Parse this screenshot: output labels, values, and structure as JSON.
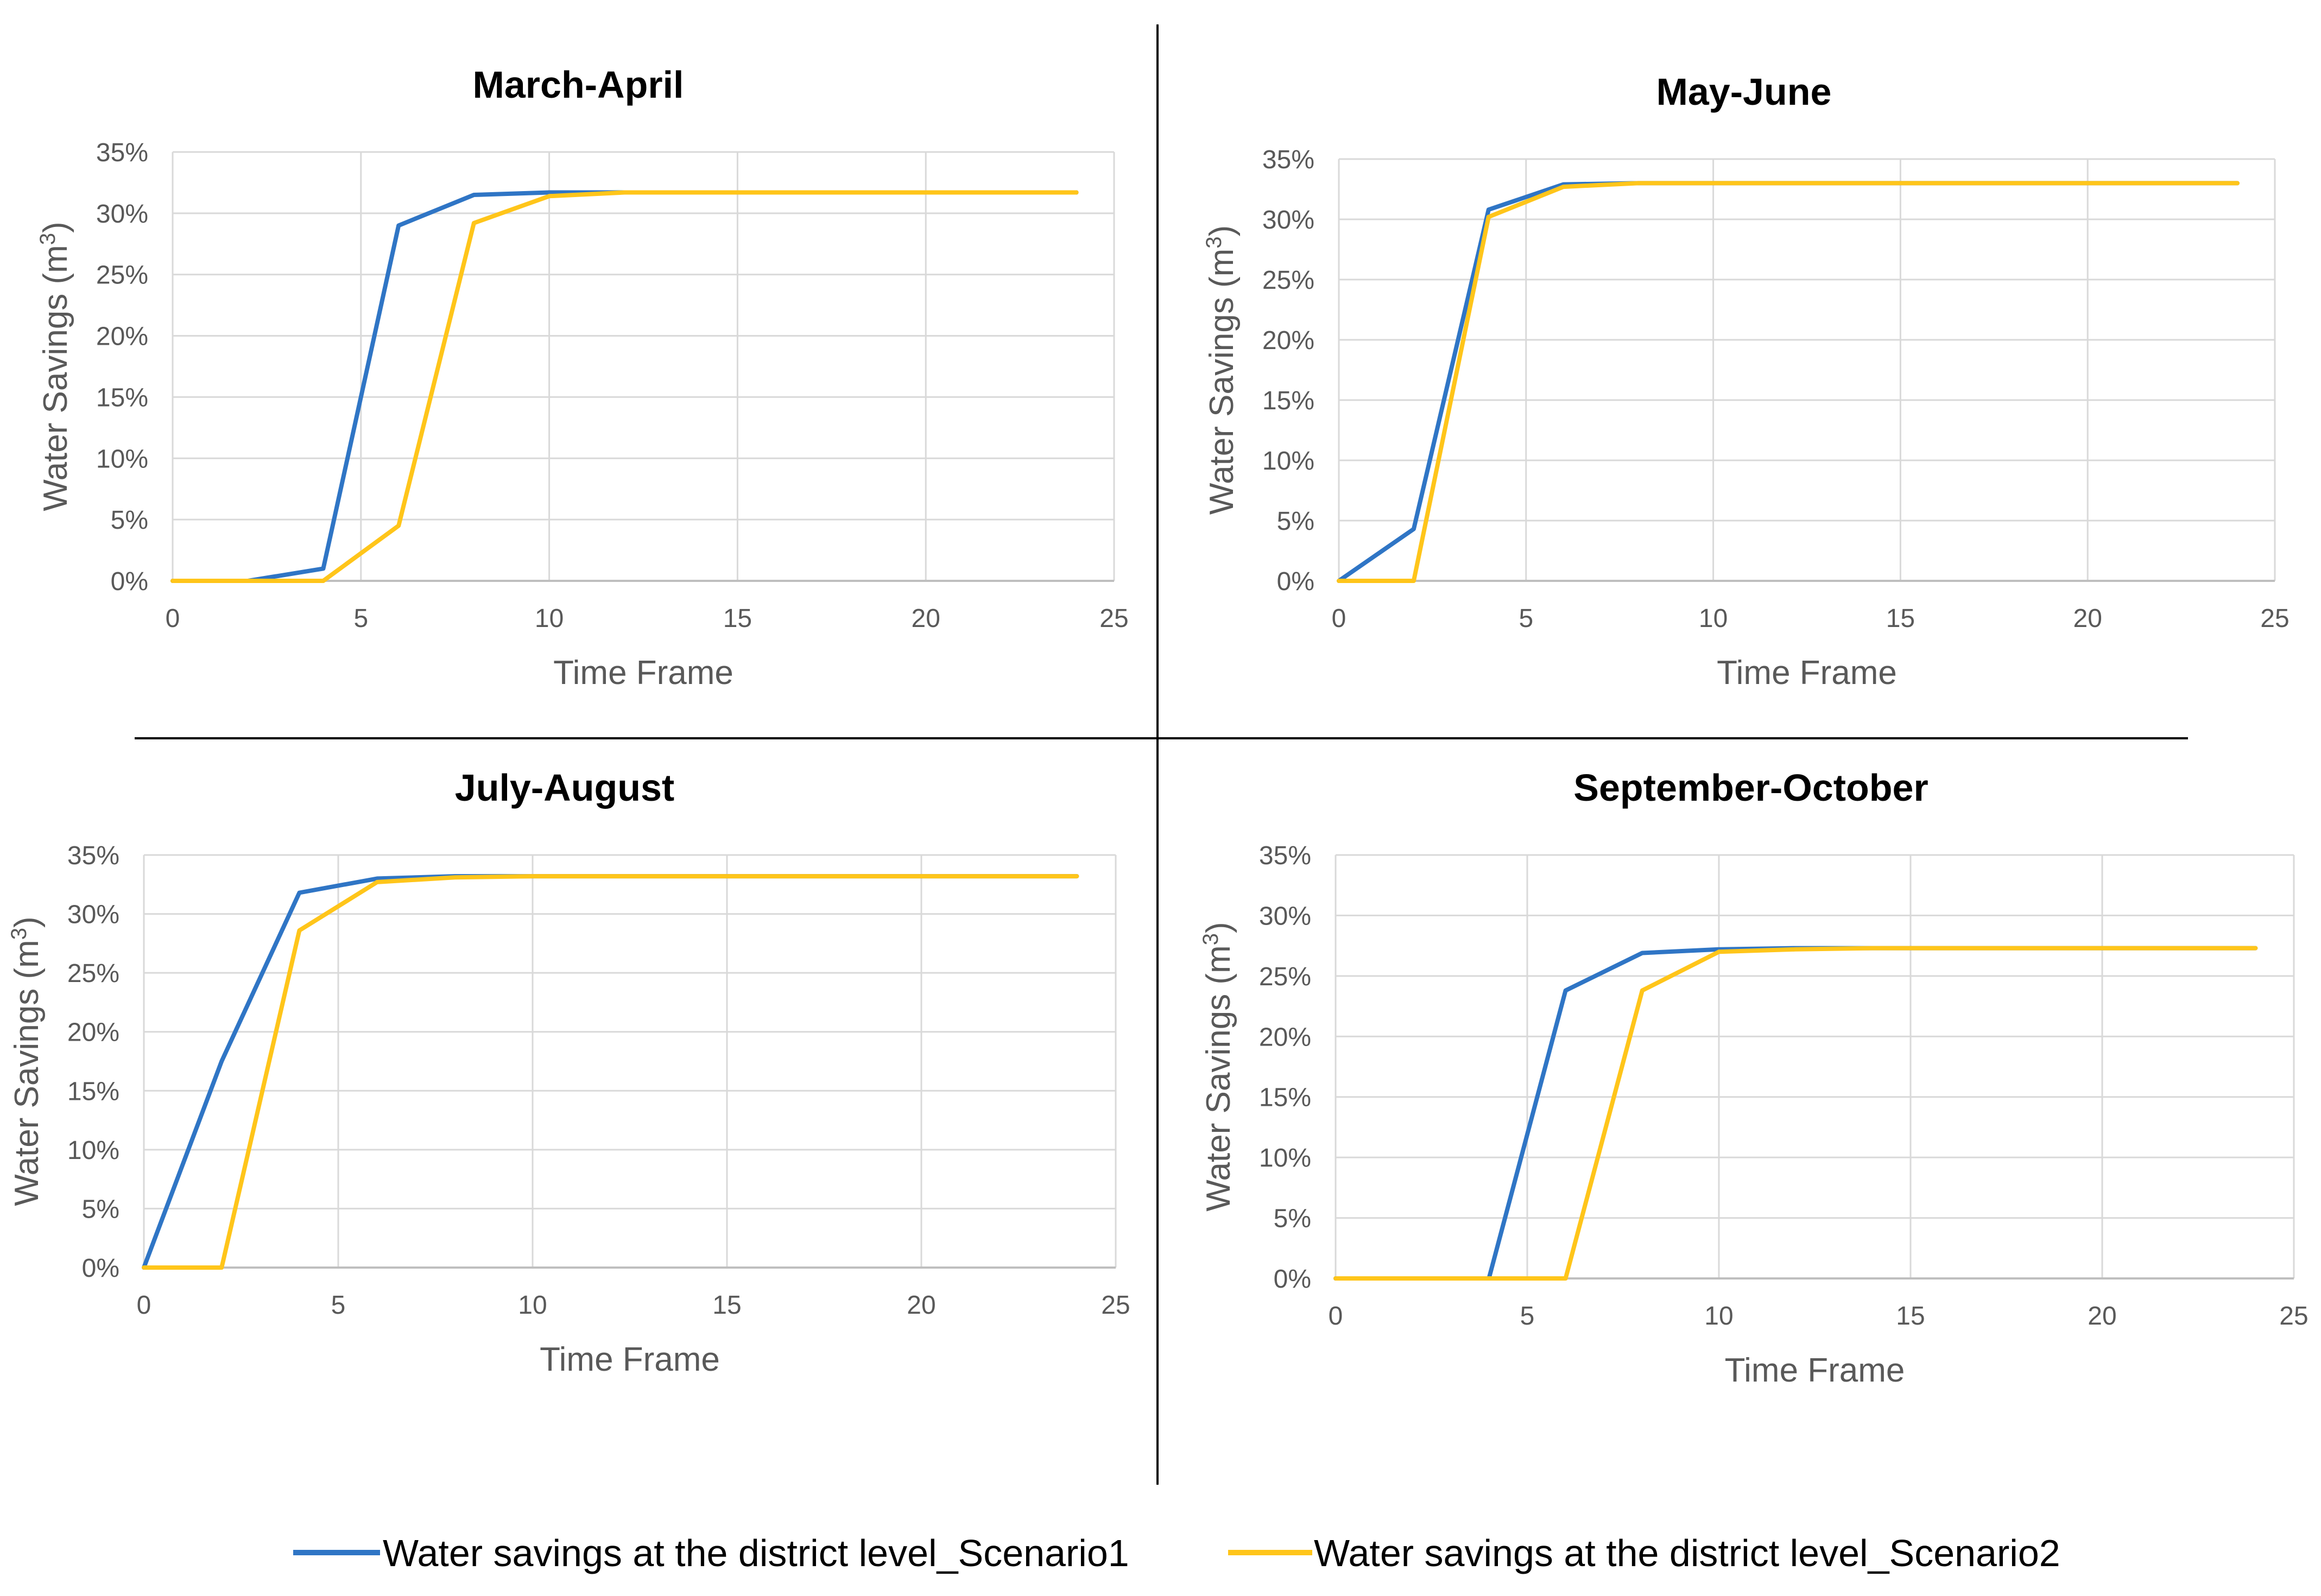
{
  "legend": {
    "series1": "Water savings at the district level_Scenario1",
    "series2": "Water savings at the district level_Scenario2"
  },
  "colors": {
    "series1": "#2f75c5",
    "series2": "#ffc51a",
    "grid": "#d9d9d9",
    "axis_text": "#595959",
    "title": "#000000",
    "divider": "#000000"
  },
  "chart_data": [
    {
      "type": "line",
      "title": "March-April",
      "xlabel": "Time Frame",
      "ylabel": "Water Savings (m",
      "ylabel_sup": "3",
      "ylabel_close": ")",
      "xlim": [
        0,
        25
      ],
      "ylim": [
        0,
        35
      ],
      "xticks": [
        "0",
        "5",
        "10",
        "15",
        "20",
        "25"
      ],
      "yticks": [
        "0%",
        "5%",
        "10%",
        "15%",
        "20%",
        "25%",
        "30%",
        "35%"
      ],
      "series": [
        {
          "name": "Water savings at the district level_Scenario1",
          "x": [
            0,
            2,
            4,
            6,
            8,
            10,
            12,
            24
          ],
          "values": [
            0,
            0,
            1,
            29,
            31.5,
            31.7,
            31.7,
            31.7
          ]
        },
        {
          "name": "Water savings at the district level_Scenario2",
          "x": [
            0,
            2,
            4,
            6,
            8,
            10,
            12,
            24
          ],
          "values": [
            0,
            0,
            0,
            4.5,
            29.2,
            31.4,
            31.7,
            31.7
          ]
        }
      ]
    },
    {
      "type": "line",
      "title": "May-June",
      "xlabel": "Time Frame",
      "ylabel": "Water Savings (m",
      "ylabel_sup": "3",
      "ylabel_close": ")",
      "xlim": [
        0,
        25
      ],
      "ylim": [
        0,
        35
      ],
      "xticks": [
        "0",
        "5",
        "10",
        "15",
        "20",
        "25"
      ],
      "yticks": [
        "0%",
        "5%",
        "10%",
        "15%",
        "20%",
        "25%",
        "30%",
        "35%"
      ],
      "series": [
        {
          "name": "Water savings at the district level_Scenario1",
          "x": [
            0,
            2,
            4,
            6,
            8,
            10,
            24
          ],
          "values": [
            0,
            4.3,
            30.8,
            32.9,
            33.0,
            33.0,
            33.0
          ]
        },
        {
          "name": "Water savings at the district level_Scenario2",
          "x": [
            0,
            2,
            4,
            6,
            8,
            10,
            24
          ],
          "values": [
            0,
            0,
            30.2,
            32.7,
            33.0,
            33.0,
            33.0
          ]
        }
      ]
    },
    {
      "type": "line",
      "title": "July-August",
      "xlabel": "Time Frame",
      "ylabel": "Water Savings (m",
      "ylabel_sup": "3",
      "ylabel_close": ")",
      "xlim": [
        0,
        25
      ],
      "ylim": [
        0,
        35
      ],
      "xticks": [
        "0",
        "5",
        "10",
        "15",
        "20",
        "25"
      ],
      "yticks": [
        "0%",
        "5%",
        "10%",
        "15%",
        "20%",
        "25%",
        "30%",
        "35%"
      ],
      "series": [
        {
          "name": "Water savings at the district level_Scenario1",
          "x": [
            0,
            2,
            4,
            6,
            8,
            10,
            24
          ],
          "values": [
            0,
            17.5,
            31.8,
            33.0,
            33.2,
            33.2,
            33.2
          ]
        },
        {
          "name": "Water savings at the district level_Scenario2",
          "x": [
            0,
            2,
            4,
            6,
            8,
            10,
            24
          ],
          "values": [
            0,
            0,
            28.6,
            32.7,
            33.1,
            33.2,
            33.2
          ]
        }
      ]
    },
    {
      "type": "line",
      "title": "September-October",
      "xlabel": "Time Frame",
      "ylabel": "Water Savings (m",
      "ylabel_sup": "3",
      "ylabel_close": ")",
      "xlim": [
        0,
        25
      ],
      "ylim": [
        0,
        35
      ],
      "xticks": [
        "0",
        "5",
        "10",
        "15",
        "20",
        "25"
      ],
      "yticks": [
        "0%",
        "5%",
        "10%",
        "15%",
        "20%",
        "25%",
        "30%",
        "35%"
      ],
      "series": [
        {
          "name": "Water savings at the district level_Scenario1",
          "x": [
            0,
            2,
            4,
            6,
            8,
            10,
            12,
            14,
            24
          ],
          "values": [
            0,
            0,
            0,
            23.8,
            26.9,
            27.2,
            27.3,
            27.3,
            27.3
          ]
        },
        {
          "name": "Water savings at the district level_Scenario2",
          "x": [
            0,
            2,
            4,
            6,
            8,
            10,
            12,
            14,
            24
          ],
          "values": [
            0,
            0,
            0,
            0,
            23.8,
            27.0,
            27.2,
            27.3,
            27.3
          ]
        }
      ]
    }
  ]
}
